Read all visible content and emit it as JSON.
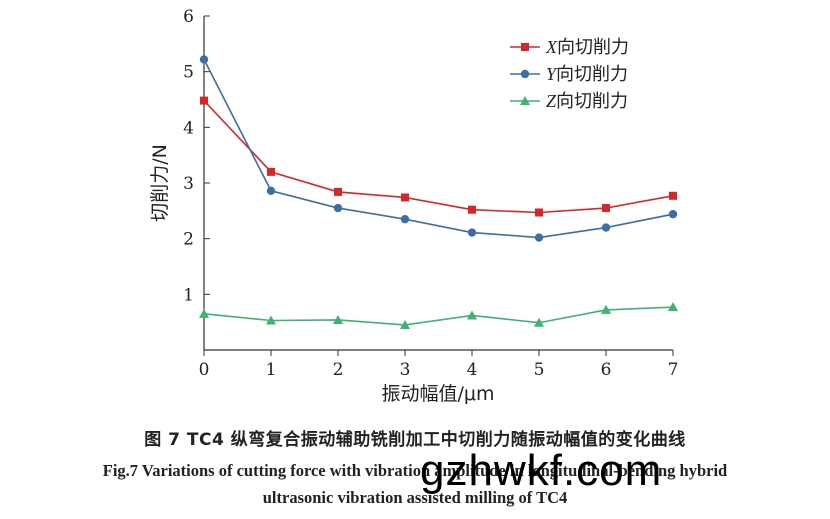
{
  "chart_data": {
    "type": "line",
    "xlabel": "振动幅值/μm",
    "ylabel": "切削力/N",
    "x": [
      0,
      1,
      2,
      3,
      4,
      5,
      6,
      7
    ],
    "xlim": [
      0,
      7
    ],
    "ylim": [
      0,
      6
    ],
    "xticks": [
      "0",
      "1",
      "2",
      "3",
      "4",
      "5",
      "6",
      "7"
    ],
    "yticks": [
      "1",
      "2",
      "3",
      "4",
      "5",
      "6"
    ],
    "legend_position": "top-right",
    "grid": false,
    "series": [
      {
        "name_italic": "X",
        "name_rest": "向切削力",
        "color": "#d62728",
        "marker": "square",
        "values": [
          4.48,
          3.2,
          2.84,
          2.74,
          2.52,
          2.47,
          2.55,
          2.77
        ]
      },
      {
        "name_italic": "Y",
        "name_rest": "向切削力",
        "color": "#3a6ea5",
        "marker": "circle",
        "values": [
          5.22,
          2.86,
          2.55,
          2.35,
          2.11,
          2.02,
          2.2,
          2.44
        ]
      },
      {
        "name_italic": "Z",
        "name_rest": "向切削力",
        "color": "#3cb371",
        "marker": "triangle",
        "values": [
          0.65,
          0.53,
          0.54,
          0.45,
          0.62,
          0.49,
          0.72,
          0.77
        ]
      }
    ]
  },
  "caption": {
    "cn": "图 7 TC4 纵弯复合振动辅助铣削加工中切削力随振动幅值的变化曲线",
    "en_line1": "Fig.7 Variations of cutting force with vibration amplitude in longitudinal-bending hybrid",
    "en_line2": "ultrasonic vibration assisted milling of TC4"
  },
  "watermark": "gzhwkf.com"
}
